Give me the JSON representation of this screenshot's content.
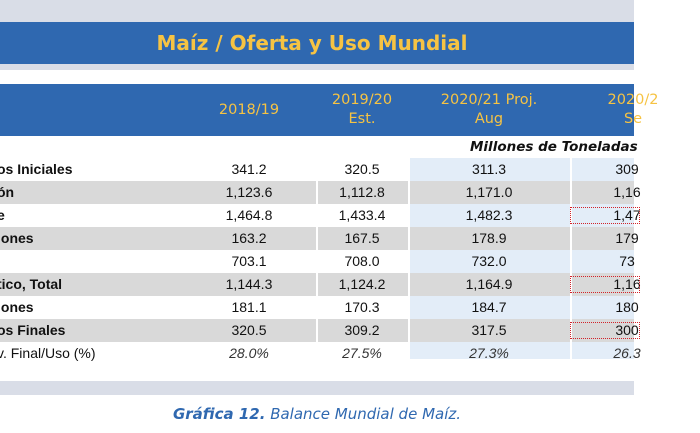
{
  "title": "Maíz / Oferta y Uso Mundial",
  "columns": [
    {
      "line1": "2018/19",
      "line2": ""
    },
    {
      "line1": "2019/20",
      "line2": "Est."
    },
    {
      "line1": "2020/21 Proj.",
      "line2": "Aug"
    },
    {
      "line1": "2020/2",
      "line2": "Se"
    }
  ],
  "unit_label": "Millones de Toneladas",
  "rows": [
    {
      "label": "os Iniciales",
      "values": [
        "341.2",
        "320.5",
        "311.3",
        "309"
      ]
    },
    {
      "label": "ón",
      "values": [
        "1,123.6",
        "1,112.8",
        "1,171.0",
        "1,16"
      ]
    },
    {
      "label": "e",
      "values": [
        "1,464.8",
        "1,433.4",
        "1,482.3",
        "1,47"
      ]
    },
    {
      "label": "iones",
      "values": [
        "163.2",
        "167.5",
        "178.9",
        "179"
      ]
    },
    {
      "label": "",
      "values": [
        "703.1",
        "708.0",
        "732.0",
        "73"
      ]
    },
    {
      "label": "tico, Total",
      "values": [
        "1,144.3",
        "1,124.2",
        "1,164.9",
        "1,16"
      ]
    },
    {
      "label": "iones",
      "values": [
        "181.1",
        "170.3",
        "184.7",
        "180"
      ]
    },
    {
      "label": "os Finales",
      "values": [
        "320.5",
        "309.2",
        "317.5",
        "300"
      ]
    },
    {
      "label": "v. Final/Uso (%)",
      "values": [
        "28.0%",
        "27.5%",
        "27.3%",
        "26.3"
      ]
    }
  ],
  "caption_bold": "Gráfica 12.",
  "caption_text": " Balance Mundial de Maíz.",
  "colors": {
    "header_blue": "#2f68b0",
    "header_text": "#f6c343",
    "highlight_red": "#d2232a"
  }
}
